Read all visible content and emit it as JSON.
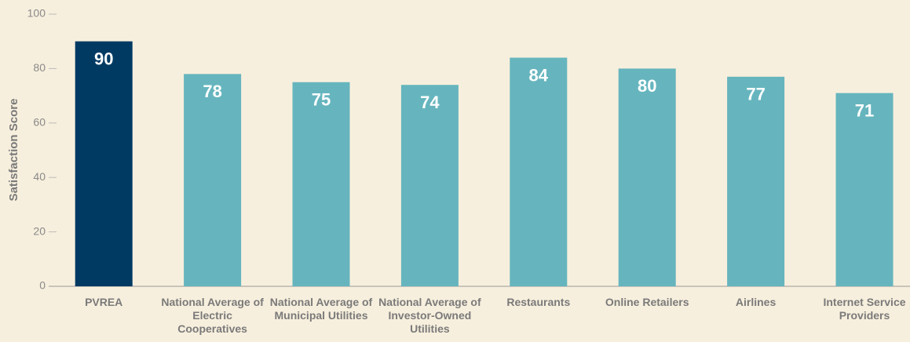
{
  "chart_data": {
    "type": "bar",
    "y_label": "Satisfaction Score",
    "categories": [
      "PVREA",
      "National Average of Electric Cooperatives",
      "National Average of Municipal Utilities",
      "National Average of Investor-Owned Utilities",
      "Restaurants",
      "Online Retailers",
      "Airlines",
      "Internet Service Providers"
    ],
    "values": [
      90,
      78,
      75,
      74,
      84,
      80,
      77,
      71
    ],
    "colors": [
      "#003a63",
      "#66b5be",
      "#66b5be",
      "#66b5be",
      "#66b5be",
      "#66b5be",
      "#66b5be",
      "#66b5be"
    ],
    "ylim": [
      0,
      100
    ],
    "yticks": [
      0,
      20,
      40,
      60,
      80,
      100
    ],
    "grid": false
  }
}
